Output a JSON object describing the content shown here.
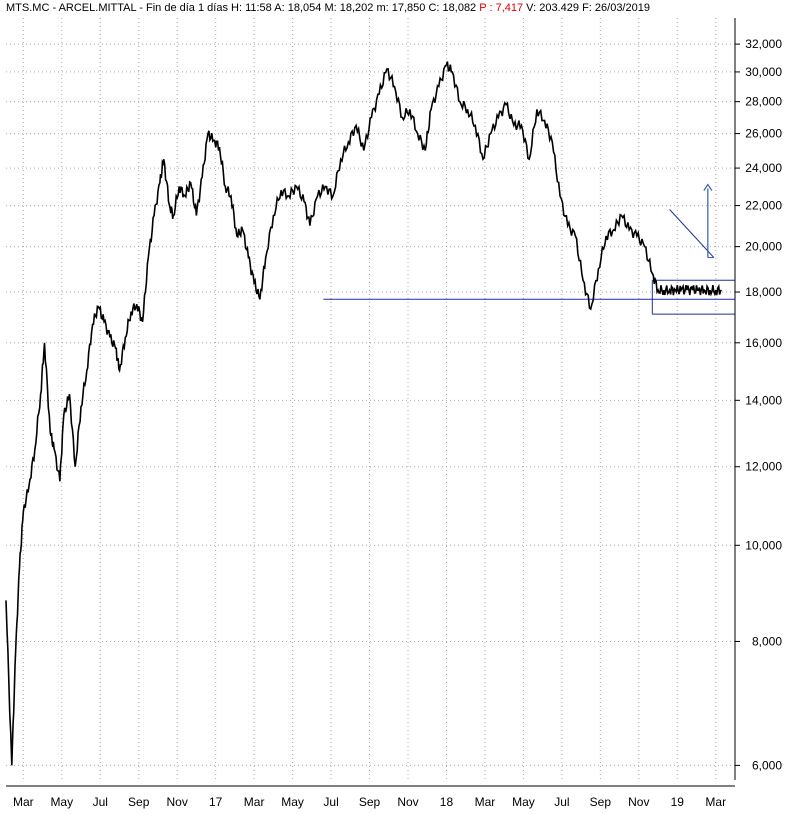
{
  "header": {
    "symbol": "MTS.MC",
    "name": "ARCEL.MITTAL",
    "period": "Fin de día 1 días",
    "high_label": "H:",
    "high": "11:58",
    "open_label": "A:",
    "open": "18,054",
    "max_label": "M:",
    "max": "18,202",
    "min_label": "m:",
    "min": "17,850",
    "close_label": "C:",
    "close": "18,082",
    "p_label": "P :",
    "p": "7,417",
    "vol_label": "V:",
    "vol": "203.429",
    "date_label": "F:",
    "date": "26/03/2019"
  },
  "colors": {
    "price": "#000000",
    "trendline": "#1f2f9a",
    "arrow": "#2d5fa8",
    "grid": "#aaaaaa"
  },
  "chart_data": {
    "type": "line",
    "scale": "log",
    "ylim": [
      5800,
      34000
    ],
    "y_ticks": [
      6000,
      8000,
      10000,
      12000,
      14000,
      16000,
      18000,
      20000,
      22000,
      24000,
      26000,
      28000,
      30000,
      32000
    ],
    "y_tick_labels": [
      "6,000",
      "8,000",
      "10,000",
      "12,000",
      "14,000",
      "16,000",
      "18,000",
      "20,000",
      "22,000",
      "24,000",
      "26,000",
      "28,000",
      "30,000",
      "32,000"
    ],
    "x_tick_labels": [
      "Mar",
      "May",
      "Jul",
      "Sep",
      "Nov",
      "17",
      "Mar",
      "May",
      "Jul",
      "Sep",
      "Nov",
      "18",
      "Mar",
      "May",
      "Jul",
      "Sep",
      "Nov",
      "19",
      "Mar"
    ],
    "x_tick_months": [
      2,
      4,
      6,
      8,
      10,
      12,
      14,
      16,
      18,
      20,
      22,
      24,
      26,
      28,
      30,
      32,
      34,
      36,
      38
    ],
    "x_range_months": [
      1.1,
      39.0
    ],
    "series": [
      {
        "x": [
          1.1,
          1.4,
          1.6,
          1.8,
          2.0,
          2.3,
          2.6,
          2.9,
          3.1,
          3.4,
          3.6,
          3.9,
          4.1,
          4.4,
          4.7,
          5.0,
          5.3,
          5.6,
          5.9,
          6.2,
          6.5,
          6.8,
          7.0,
          7.3,
          7.6,
          7.9,
          8.2,
          8.5,
          8.8,
          9.1,
          9.3,
          9.6,
          9.8,
          10.1,
          10.4,
          10.7,
          11.0,
          11.3,
          11.6,
          11.9,
          12.2,
          12.5,
          12.8,
          13.1,
          13.4,
          13.7,
          14.0,
          14.3,
          14.6,
          15.0,
          15.4,
          15.8,
          16.2,
          16.6,
          16.9,
          17.3,
          17.7,
          18.1,
          18.5,
          18.9,
          19.3,
          19.7,
          20.1,
          20.5,
          20.9,
          21.3,
          21.7,
          22.1,
          22.5,
          22.9,
          23.2,
          23.6,
          24.0,
          24.3,
          24.7,
          25.1,
          25.5,
          25.9,
          26.3,
          26.7,
          27.1,
          27.5,
          27.9,
          28.3,
          28.7,
          29.1,
          29.5,
          29.9,
          30.3,
          30.7,
          31.1,
          31.5,
          31.9,
          32.3,
          32.7,
          33.1,
          33.5,
          33.9,
          34.3,
          34.7,
          35.0,
          35.3,
          35.6,
          35.9,
          36.2,
          36.5,
          36.8,
          37.1,
          37.4,
          37.7,
          38.0,
          38.3
        ],
        "y": [
          8800,
          6000,
          7800,
          9500,
          10800,
          11500,
          12500,
          14200,
          16000,
          13000,
          12500,
          11600,
          13500,
          14200,
          12000,
          13800,
          15000,
          16700,
          17400,
          16800,
          16200,
          15800,
          15000,
          16200,
          17200,
          17500,
          16800,
          19500,
          21500,
          23200,
          24500,
          22000,
          21500,
          23000,
          22500,
          23200,
          21500,
          23500,
          26000,
          25600,
          25200,
          23000,
          22500,
          20500,
          20800,
          19500,
          18400,
          17700,
          19500,
          21500,
          22800,
          22500,
          23000,
          22200,
          21000,
          22500,
          23000,
          22500,
          24500,
          25500,
          26500,
          25000,
          27000,
          28500,
          30200,
          29000,
          27000,
          27500,
          26000,
          25000,
          27500,
          29000,
          30500,
          30000,
          28000,
          27500,
          26500,
          24500,
          26000,
          27000,
          27800,
          26500,
          26500,
          24500,
          27500,
          26800,
          25500,
          22500,
          21000,
          20500,
          18500,
          17300,
          19000,
          20500,
          20800,
          21500,
          20800,
          20500,
          20000,
          18800,
          18082,
          18082,
          18082,
          18082,
          18082,
          18082,
          18082,
          18082,
          18082,
          18082,
          18082,
          18082
        ]
      }
    ],
    "overlays": {
      "support": 17700,
      "box_top": 18500,
      "box_bottom": 17100,
      "triangle_top": [
        35.6,
        21800
      ],
      "triangle_end": [
        37.9,
        19500
      ],
      "arrow_from": 19500,
      "arrow_to": 23100
    }
  }
}
